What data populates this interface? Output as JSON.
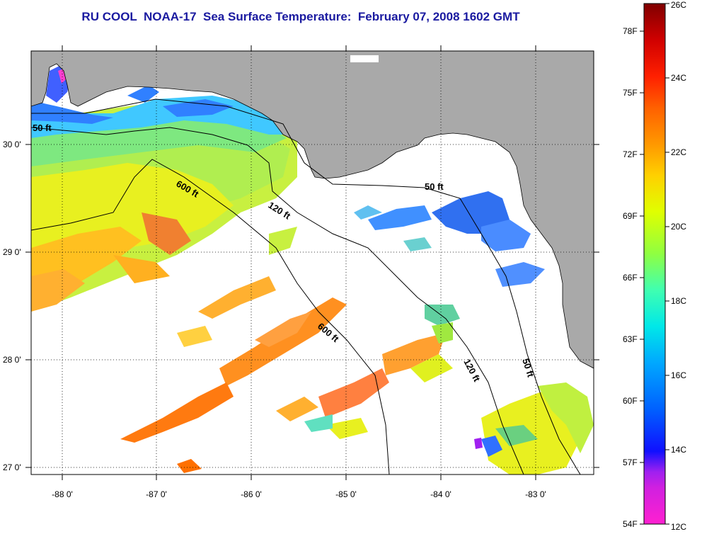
{
  "title": "RU COOL  NOAA-17  Sea Surface Temperature:  February 07, 2008 1602 GMT",
  "map": {
    "lon_range": [
      -88.35,
      -82.4
    ],
    "lat_range": [
      26.95,
      30.95
    ],
    "lon_ticks": [
      "-88 0'",
      "-87 0'",
      "-86 0'",
      "-85 0'",
      "-84 0'",
      "-83 0'"
    ],
    "lat_ticks": [
      "27 0'",
      "28 0'",
      "29 0'",
      "30 0'"
    ],
    "grid": true,
    "land_color": "#a9a9a9",
    "cloud_color": "#ffffff",
    "contour_labels": [
      "50 ft",
      "600 ft",
      "120 ft",
      "50 ft",
      "600 ft",
      "120 ft",
      "50 ft"
    ]
  },
  "colorbar": {
    "fahrenheit_labels": [
      "78F",
      "75F",
      "72F",
      "69F",
      "66F",
      "63F",
      "60F",
      "57F",
      "54F"
    ],
    "celsius_labels": [
      "26C",
      "24C",
      "22C",
      "20C",
      "18C",
      "16C",
      "14C",
      "12C"
    ],
    "range_c": [
      12,
      26
    ],
    "colors": [
      "#ff20d0",
      "#a020f0",
      "#1010ff",
      "#0060ff",
      "#00c8ff",
      "#40ffb0",
      "#b0ff30",
      "#ffff00",
      "#ffb000",
      "#ff7000",
      "#ff2000",
      "#d00000",
      "#800000"
    ]
  }
}
